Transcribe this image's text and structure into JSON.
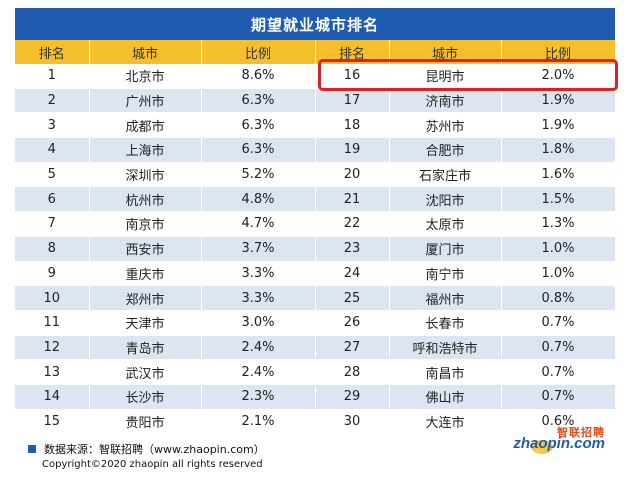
{
  "title": "期望就业城市排名",
  "chart_data": {
    "type": "table",
    "headers": [
      "排名",
      "城市",
      "比例",
      "排名",
      "城市",
      "比例"
    ],
    "rows": [
      {
        "rank_a": "1",
        "city_a": "北京市",
        "ratio_a": "8.6%",
        "rank_b": "16",
        "city_b": "昆明市",
        "ratio_b": "2.0%"
      },
      {
        "rank_a": "2",
        "city_a": "广州市",
        "ratio_a": "6.3%",
        "rank_b": "17",
        "city_b": "济南市",
        "ratio_b": "1.9%"
      },
      {
        "rank_a": "3",
        "city_a": "成都市",
        "ratio_a": "6.3%",
        "rank_b": "18",
        "city_b": "苏州市",
        "ratio_b": "1.9%"
      },
      {
        "rank_a": "4",
        "city_a": "上海市",
        "ratio_a": "6.3%",
        "rank_b": "19",
        "city_b": "合肥市",
        "ratio_b": "1.8%"
      },
      {
        "rank_a": "5",
        "city_a": "深圳市",
        "ratio_a": "5.2%",
        "rank_b": "20",
        "city_b": "石家庄市",
        "ratio_b": "1.6%"
      },
      {
        "rank_a": "6",
        "city_a": "杭州市",
        "ratio_a": "4.8%",
        "rank_b": "21",
        "city_b": "沈阳市",
        "ratio_b": "1.5%"
      },
      {
        "rank_a": "7",
        "city_a": "南京市",
        "ratio_a": "4.7%",
        "rank_b": "22",
        "city_b": "太原市",
        "ratio_b": "1.3%"
      },
      {
        "rank_a": "8",
        "city_a": "西安市",
        "ratio_a": "3.7%",
        "rank_b": "23",
        "city_b": "厦门市",
        "ratio_b": "1.0%"
      },
      {
        "rank_a": "9",
        "city_a": "重庆市",
        "ratio_a": "3.3%",
        "rank_b": "24",
        "city_b": "南宁市",
        "ratio_b": "1.0%"
      },
      {
        "rank_a": "10",
        "city_a": "郑州市",
        "ratio_a": "3.3%",
        "rank_b": "25",
        "city_b": "福州市",
        "ratio_b": "0.8%"
      },
      {
        "rank_a": "11",
        "city_a": "天津市",
        "ratio_a": "3.0%",
        "rank_b": "26",
        "city_b": "长春市",
        "ratio_b": "0.7%"
      },
      {
        "rank_a": "12",
        "city_a": "青岛市",
        "ratio_a": "2.4%",
        "rank_b": "27",
        "city_b": "呼和浩特市",
        "ratio_b": "0.7%"
      },
      {
        "rank_a": "13",
        "city_a": "武汉市",
        "ratio_a": "2.4%",
        "rank_b": "28",
        "city_b": "南昌市",
        "ratio_b": "0.7%"
      },
      {
        "rank_a": "14",
        "city_a": "长沙市",
        "ratio_a": "2.3%",
        "rank_b": "29",
        "city_b": "佛山市",
        "ratio_b": "0.7%"
      },
      {
        "rank_a": "15",
        "city_a": "贵阳市",
        "ratio_a": "2.1%",
        "rank_b": "30",
        "city_b": "大连市",
        "ratio_b": "0.6%"
      }
    ],
    "highlighted_row": 0,
    "highlighted_side": "right"
  },
  "footer": {
    "source": "数据来源：智联招聘（www.zhaopin.com）",
    "copyright": "Copyright©2020 zhaopin all rights reserved"
  },
  "logo": {
    "cn": "智联招聘",
    "en": "zhaopin.com"
  },
  "colors": {
    "title_bg": "#1f5bb0",
    "header_bg": "#f4bf2a",
    "stripe": "#dce6f2",
    "highlight": "#e02020"
  }
}
